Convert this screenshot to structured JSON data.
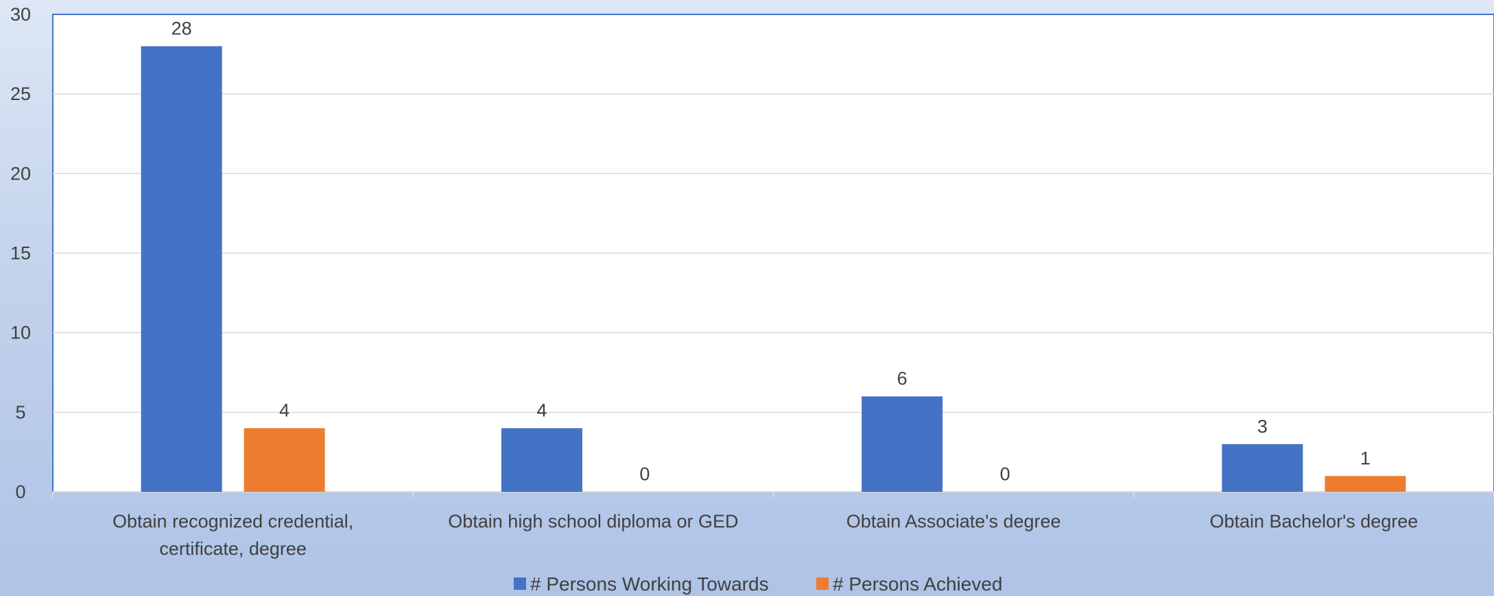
{
  "chart_data": {
    "type": "bar",
    "title": "",
    "xlabel": "",
    "ylabel": "",
    "ylim": [
      0,
      30
    ],
    "yticks": [
      0,
      5,
      10,
      15,
      20,
      25,
      30
    ],
    "grid": true,
    "legend_position": "bottom",
    "categories": [
      [
        "Obtain recognized credential,",
        "certificate, degree"
      ],
      [
        "Obtain high school diploma or GED"
      ],
      [
        "Obtain Associate's degree"
      ],
      [
        "Obtain Bachelor's degree"
      ]
    ],
    "series": [
      {
        "name": "# Persons Working Towards",
        "color": "#4472c4",
        "values": [
          28,
          4,
          6,
          3
        ]
      },
      {
        "name": "# Persons Achieved",
        "color": "#ed7d31",
        "values": [
          4,
          0,
          0,
          1
        ]
      }
    ]
  }
}
